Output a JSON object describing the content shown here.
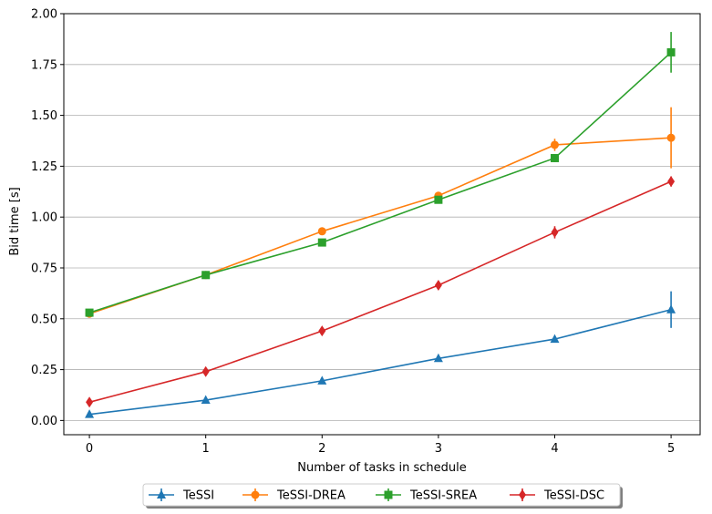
{
  "chart_data": {
    "type": "line",
    "title": "",
    "xlabel": "Number of tasks in schedule",
    "ylabel": "Bid time [s]",
    "x": [
      0,
      1,
      2,
      3,
      4,
      5
    ],
    "xticks": [
      "0",
      "1",
      "2",
      "3",
      "4",
      "5"
    ],
    "yticks": [
      "0.00",
      "0.25",
      "0.50",
      "0.75",
      "1.00",
      "1.25",
      "1.50",
      "1.75",
      "2.00"
    ],
    "xlim": [
      -0.22,
      5.25
    ],
    "ylim": [
      -0.07,
      2.0
    ],
    "grid": "horizontal",
    "legend_position": "bottom-center-outside",
    "series": [
      {
        "name": "TeSSI",
        "color": "#1f77b4",
        "marker": "triangle",
        "values": [
          0.03,
          0.1,
          0.195,
          0.305,
          0.4,
          0.545
        ],
        "errors": [
          0.005,
          0.008,
          0.01,
          0.01,
          0.012,
          0.09
        ]
      },
      {
        "name": "TeSSI-DREA",
        "color": "#ff7f0e",
        "marker": "circle",
        "values": [
          0.525,
          0.715,
          0.93,
          1.105,
          1.355,
          1.39
        ],
        "errors": [
          0.01,
          0.01,
          0.015,
          0.015,
          0.03,
          0.15
        ]
      },
      {
        "name": "TeSSI-SREA",
        "color": "#2ca02c",
        "marker": "square",
        "values": [
          0.53,
          0.715,
          0.875,
          1.085,
          1.29,
          1.81
        ],
        "errors": [
          0.01,
          0.01,
          0.012,
          0.012,
          0.02,
          0.1
        ]
      },
      {
        "name": "TeSSI-DSC",
        "color": "#d62728",
        "marker": "diamond",
        "values": [
          0.09,
          0.24,
          0.44,
          0.665,
          0.925,
          1.175
        ],
        "errors": [
          0.005,
          0.01,
          0.012,
          0.015,
          0.03,
          0.025
        ]
      }
    ]
  }
}
